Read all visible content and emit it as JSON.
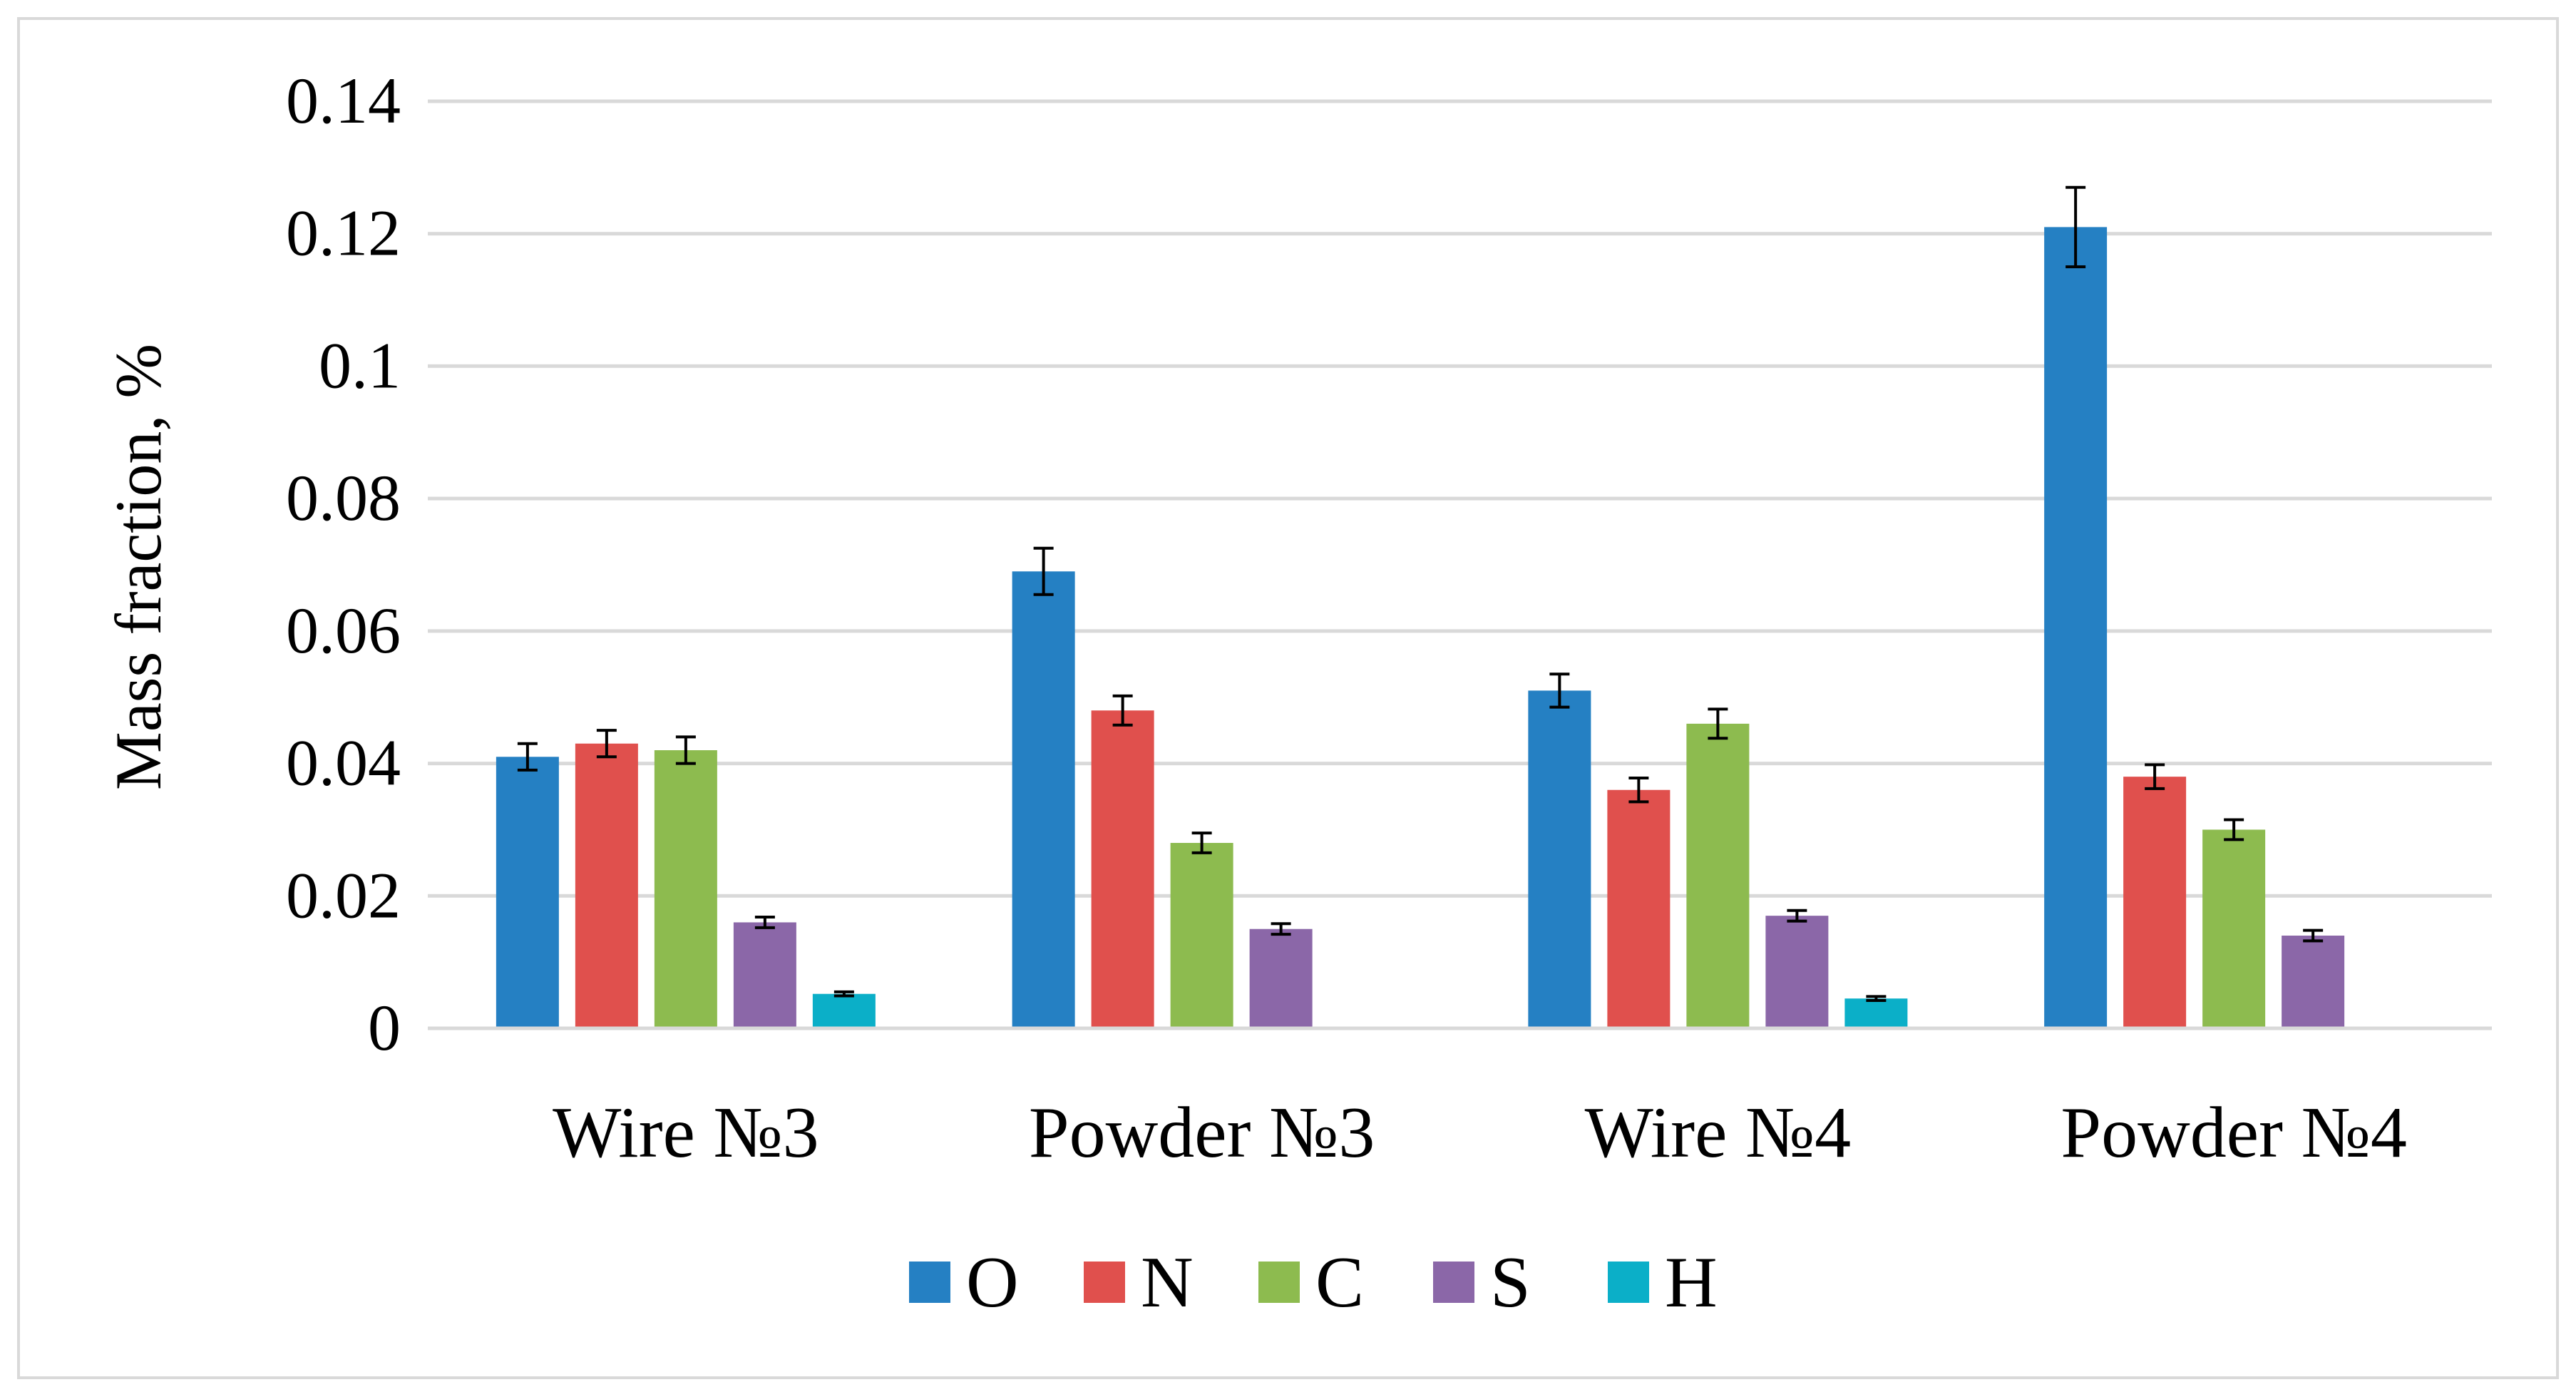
{
  "chart_data": {
    "type": "bar",
    "title": "",
    "xlabel": "",
    "ylabel": "Mass fraction, %",
    "ylim": [
      0,
      0.14
    ],
    "yticks": [
      0,
      0.02,
      0.04,
      0.06,
      0.08,
      0.1,
      0.12,
      0.14
    ],
    "ytick_labels": [
      "0",
      "0.02",
      "0.04",
      "0.06",
      "0.08",
      "0.1",
      "0.12",
      "0.14"
    ],
    "grid": true,
    "legend_position": "bottom",
    "categories": [
      "Wire №3",
      "Powder №3",
      "Wire №4",
      "Powder №4"
    ],
    "series": [
      {
        "name": "O",
        "color": "#2580C3",
        "values": [
          0.041,
          0.069,
          0.051,
          0.121
        ],
        "errors": [
          0.002,
          0.0035,
          0.0025,
          0.006
        ]
      },
      {
        "name": "N",
        "color": "#E0504D",
        "values": [
          0.043,
          0.048,
          0.036,
          0.038
        ],
        "errors": [
          0.002,
          0.0022,
          0.0018,
          0.0018
        ]
      },
      {
        "name": "C",
        "color": "#8DBB4F",
        "values": [
          0.042,
          0.028,
          0.046,
          0.03
        ],
        "errors": [
          0.002,
          0.0015,
          0.0022,
          0.0015
        ]
      },
      {
        "name": "S",
        "color": "#8B67A8",
        "values": [
          0.016,
          0.015,
          0.017,
          0.014
        ],
        "errors": [
          0.0008,
          0.0008,
          0.0008,
          0.0008
        ]
      },
      {
        "name": "H",
        "color": "#0BAFC8",
        "values": [
          0.0052,
          0.0001,
          0.0045,
          0.0001
        ],
        "errors": [
          0.0003,
          0.0,
          0.0003,
          0.0
        ]
      }
    ]
  }
}
